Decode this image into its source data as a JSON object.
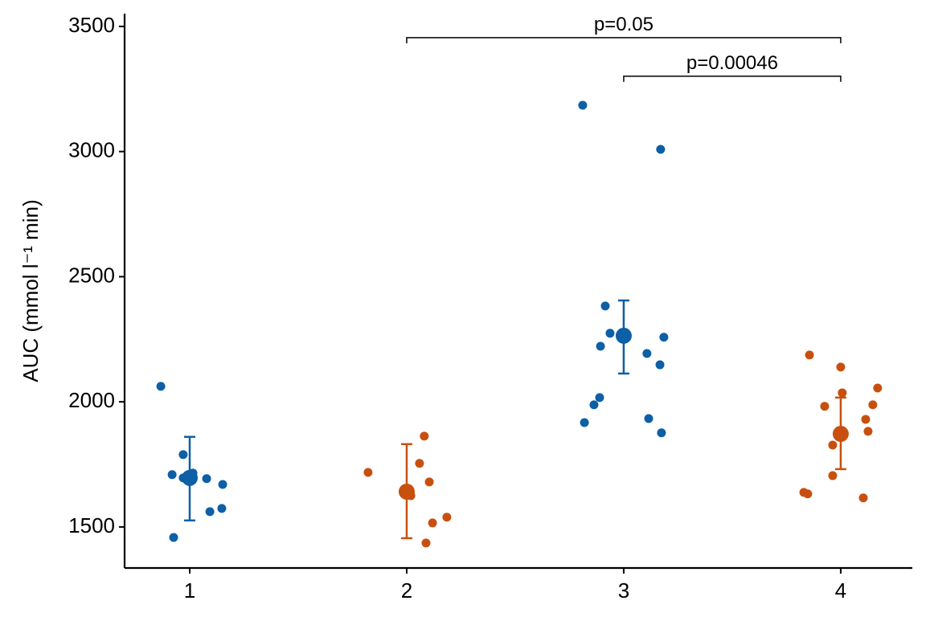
{
  "chart_data": {
    "type": "scatter",
    "y_label": "AUC (mmol l⁻¹ min)",
    "xlim": [
      0.7,
      4.33
    ],
    "ylim": [
      1336,
      3551
    ],
    "xticks": [
      1,
      2,
      3,
      4
    ],
    "yticks": [
      1500,
      2000,
      2500,
      3000,
      3500
    ],
    "grid": false,
    "series": [
      {
        "color": "#0d5fa6",
        "x": [
          0.867,
          0.919,
          0.97,
          0.97,
          1.015,
          1.078,
          1.152,
          1.093,
          1.148,
          0.926
        ],
        "values": [
          2062,
          1709,
          1696,
          1789,
          1715,
          1693,
          1670,
          1561,
          1574,
          1458
        ]
      },
      {
        "color": "#c8500f",
        "x": [
          1.822,
          2.081,
          2.059,
          2.104,
          2.019,
          2.119,
          2.185,
          2.089
        ],
        "values": [
          1718,
          1863,
          1754,
          1680,
          1625,
          1516,
          1539,
          1436
        ]
      },
      {
        "color": "#0d5fa6",
        "x": [
          2.811,
          3.17,
          2.915,
          2.937,
          2.893,
          3.185,
          3.107,
          3.167,
          2.889,
          2.863,
          2.819,
          3.115,
          3.174
        ],
        "values": [
          3185,
          3009,
          2383,
          2274,
          2222,
          2258,
          2193,
          2148,
          2017,
          1988,
          1917,
          1933,
          1876
        ]
      },
      {
        "color": "#c8500f",
        "x": [
          3.856,
          4.0,
          4.007,
          3.926,
          4.17,
          4.148,
          4.115,
          4.126,
          3.963,
          3.963,
          3.83,
          3.848,
          4.104
        ],
        "values": [
          2187,
          2139,
          2036,
          1982,
          2055,
          1988,
          1930,
          1882,
          1827,
          1705,
          1638,
          1632,
          1616
        ]
      }
    ],
    "means": {
      "x": [
        1,
        2,
        3,
        4
      ],
      "values": [
        1696,
        1641,
        2264,
        1872
      ],
      "lower": [
        1526,
        1455,
        2113,
        1731
      ],
      "upper": [
        1860,
        1831,
        2405,
        2017
      ],
      "colors": [
        "#0d5fa6",
        "#c8500f",
        "#0d5fa6",
        "#c8500f"
      ]
    },
    "brackets": [
      {
        "label": "p=0.05",
        "x": [
          2,
          4
        ],
        "y": 3455
      },
      {
        "label": "p=0.00046",
        "x": [
          3,
          4
        ],
        "y": 3301
      }
    ]
  }
}
